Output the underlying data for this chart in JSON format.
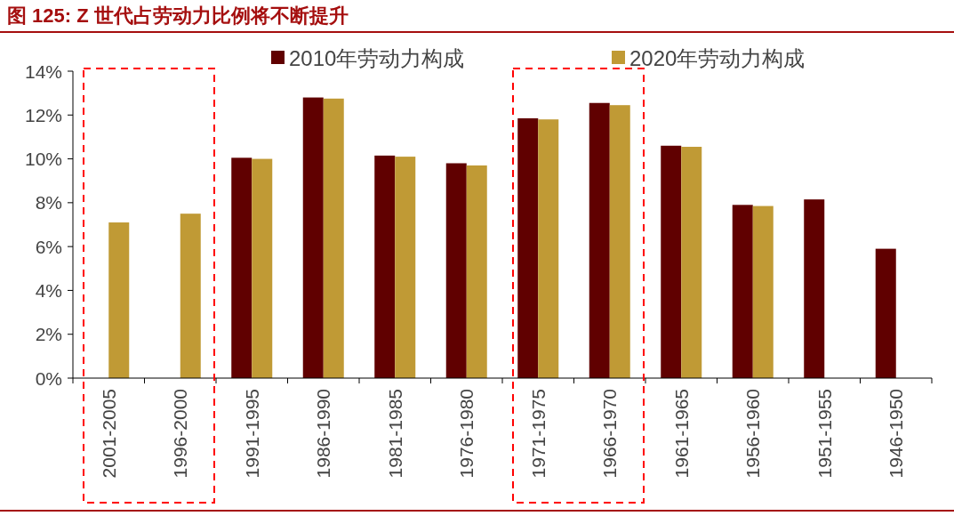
{
  "chart_data": {
    "type": "bar",
    "title": "图 125:  Z 世代占劳动力比例将不断提升",
    "categories": [
      "2001-2005",
      "1996-2000",
      "1991-1995",
      "1986-1990",
      "1981-1985",
      "1976-1980",
      "1971-1975",
      "1966-1970",
      "1961-1965",
      "1956-1960",
      "1951-1955",
      "1946-1950"
    ],
    "series": [
      {
        "name": "2010年劳动力构成",
        "color": "#600000",
        "values": [
          null,
          null,
          10.05,
          12.8,
          10.15,
          9.8,
          11.85,
          12.55,
          10.6,
          7.9,
          8.15,
          5.9
        ]
      },
      {
        "name": "2020年劳动力构成",
        "color": "#c09a35",
        "values": [
          7.1,
          7.5,
          10.0,
          12.75,
          10.1,
          9.7,
          11.8,
          12.45,
          10.55,
          7.85,
          null,
          null
        ]
      }
    ],
    "ylim": [
      0,
      14
    ],
    "yticks": [
      {
        "value": 0,
        "label": "0%"
      },
      {
        "value": 2,
        "label": "2%"
      },
      {
        "value": 4,
        "label": "4%"
      },
      {
        "value": 6,
        "label": "6%"
      },
      {
        "value": 8,
        "label": "8%"
      },
      {
        "value": 10,
        "label": "10%"
      },
      {
        "value": 12,
        "label": "12%"
      },
      {
        "value": 14,
        "label": "14%"
      }
    ],
    "legend": "top",
    "grid": false
  }
}
